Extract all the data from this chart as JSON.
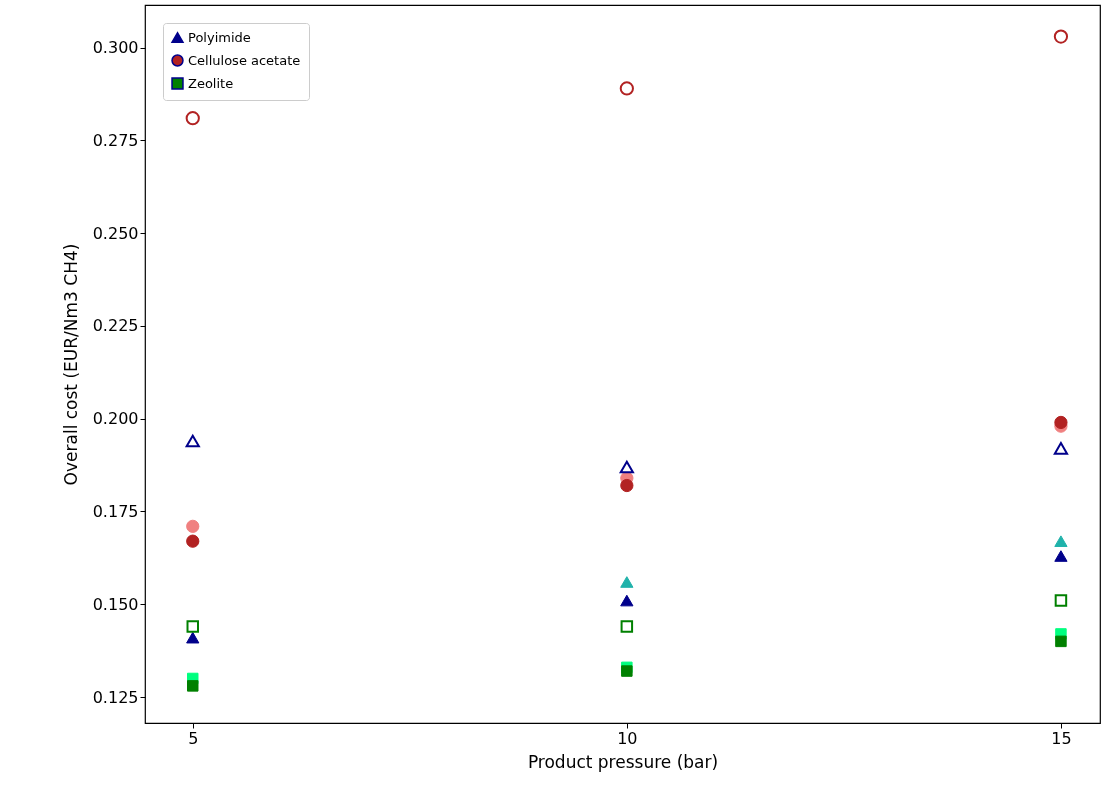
{
  "chart_data": {
    "type": "scatter",
    "xlabel": "Product pressure (bar)",
    "ylabel": "Overall cost (EUR/Nm3 CH4)",
    "x": [
      5,
      10,
      15
    ],
    "xlim": [
      4.45,
      15.45
    ],
    "xticks": [
      5,
      10,
      15
    ],
    "ylim": [
      0.118,
      0.3115
    ],
    "yticks": [
      0.125,
      {
        "value": 0.15,
        "label": "0.150"
      },
      0.175,
      {
        "value": 0.2,
        "label": "0.200"
      },
      0.225,
      {
        "value": 0.25,
        "label": "0.250"
      },
      0.275,
      {
        "value": 0.3,
        "label": "0.300"
      }
    ],
    "grid": false,
    "legend": "top left",
    "series": [
      {
        "color": "#20b2aa",
        "marker": "triangle",
        "values": [
          null,
          0.156,
          0.167
        ]
      },
      {
        "color": "#f08080",
        "marker": "circle",
        "values": [
          0.171,
          0.184,
          0.198
        ]
      },
      {
        "color": "#00ff7f",
        "marker": "square",
        "values": [
          0.13,
          0.133,
          0.142
        ]
      },
      {
        "name": "Polyimide",
        "color": "#00008b",
        "marker": "triangle",
        "values": [
          0.141,
          0.151,
          0.163
        ]
      },
      {
        "name": "Cellulose acetate",
        "color": "#b22222",
        "marker": "circle",
        "values": [
          0.167,
          0.182,
          0.199
        ]
      },
      {
        "name": "Zeolite",
        "color": "#008000",
        "marker": "square",
        "values": [
          0.128,
          0.132,
          0.14
        ]
      },
      {
        "color": "#00008b",
        "marker": "triangle",
        "values": [
          0.194,
          0.187,
          0.192
        ]
      },
      {
        "color": "#b22222",
        "marker": "circle",
        "values": [
          0.281,
          0.289,
          0.303
        ]
      },
      {
        "color": "#008000",
        "marker": "square",
        "values": [
          0.144,
          0.144,
          0.151
        ]
      }
    ]
  }
}
